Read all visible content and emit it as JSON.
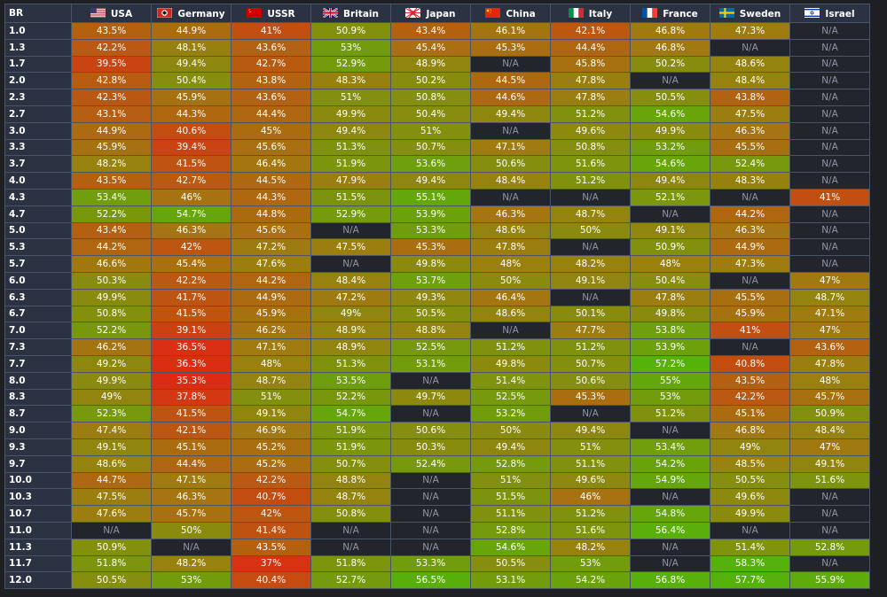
{
  "chart_data": {
    "type": "heatmap",
    "corner_label": "BR",
    "columns": [
      "USA",
      "Germany",
      "USSR",
      "Britain",
      "Japan",
      "China",
      "Italy",
      "France",
      "Sweden",
      "Israel"
    ],
    "flag_icons": [
      "us-flag-icon",
      "germany-flag-icon",
      "ussr-flag-icon",
      "uk-flag-icon",
      "japan-flag-icon",
      "china-flag-icon",
      "italy-flag-icon",
      "france-flag-icon",
      "sweden-flag-icon",
      "israel-flag-icon"
    ],
    "na_text": "N/A",
    "colors": {
      "low": "#dd2b12",
      "mid": "#a07a10",
      "high": "#55b20a",
      "na_background": "#22252c",
      "header_background": "#2b3242"
    },
    "rows": [
      {
        "br": "1.0",
        "values": [
          "43.5%",
          "44.9%",
          "41%",
          "50.9%",
          "43.4%",
          "46.1%",
          "42.1%",
          "46.8%",
          "47.3%",
          "N/A"
        ]
      },
      {
        "br": "1.3",
        "values": [
          "42.2%",
          "48.1%",
          "43.6%",
          "53%",
          "45.4%",
          "45.3%",
          "44.4%",
          "46.8%",
          "N/A",
          "N/A"
        ]
      },
      {
        "br": "1.7",
        "values": [
          "39.5%",
          "49.4%",
          "42.7%",
          "52.9%",
          "48.9%",
          "N/A",
          "45.8%",
          "50.2%",
          "48.6%",
          "N/A"
        ]
      },
      {
        "br": "2.0",
        "values": [
          "42.8%",
          "50.4%",
          "43.8%",
          "48.3%",
          "50.2%",
          "44.5%",
          "47.8%",
          "N/A",
          "48.4%",
          "N/A"
        ]
      },
      {
        "br": "2.3",
        "values": [
          "42.3%",
          "45.9%",
          "43.6%",
          "51%",
          "50.8%",
          "44.6%",
          "47.8%",
          "50.5%",
          "43.8%",
          "N/A"
        ]
      },
      {
        "br": "2.7",
        "values": [
          "43.1%",
          "44.3%",
          "44.4%",
          "49.9%",
          "50.4%",
          "49.4%",
          "51.2%",
          "54.6%",
          "47.5%",
          "N/A"
        ]
      },
      {
        "br": "3.0",
        "values": [
          "44.9%",
          "40.6%",
          "45%",
          "49.4%",
          "51%",
          "N/A",
          "49.6%",
          "49.9%",
          "46.3%",
          "N/A"
        ]
      },
      {
        "br": "3.3",
        "values": [
          "45.9%",
          "39.4%",
          "45.6%",
          "51.3%",
          "50.7%",
          "47.1%",
          "50.8%",
          "53.2%",
          "45.5%",
          "N/A"
        ]
      },
      {
        "br": "3.7",
        "values": [
          "48.2%",
          "41.5%",
          "46.4%",
          "51.9%",
          "53.6%",
          "50.6%",
          "51.6%",
          "54.6%",
          "52.4%",
          "N/A"
        ]
      },
      {
        "br": "4.0",
        "values": [
          "43.5%",
          "42.7%",
          "44.5%",
          "47.9%",
          "49.4%",
          "48.4%",
          "51.2%",
          "49.4%",
          "48.3%",
          "N/A"
        ]
      },
      {
        "br": "4.3",
        "values": [
          "53.4%",
          "46%",
          "44.3%",
          "51.5%",
          "55.1%",
          "N/A",
          "N/A",
          "52.1%",
          "N/A",
          "41%"
        ]
      },
      {
        "br": "4.7",
        "values": [
          "52.2%",
          "54.7%",
          "44.8%",
          "52.9%",
          "53.9%",
          "46.3%",
          "48.7%",
          "N/A",
          "44.2%",
          "N/A"
        ]
      },
      {
        "br": "5.0",
        "values": [
          "43.4%",
          "46.3%",
          "45.6%",
          "N/A",
          "53.3%",
          "48.6%",
          "50%",
          "49.1%",
          "46.3%",
          "N/A"
        ]
      },
      {
        "br": "5.3",
        "values": [
          "44.2%",
          "42%",
          "47.2%",
          "47.5%",
          "45.3%",
          "47.8%",
          "N/A",
          "50.9%",
          "44.9%",
          "N/A"
        ]
      },
      {
        "br": "5.7",
        "values": [
          "46.6%",
          "45.4%",
          "47.6%",
          "N/A",
          "49.8%",
          "48%",
          "48.2%",
          "48%",
          "47.3%",
          "N/A"
        ]
      },
      {
        "br": "6.0",
        "values": [
          "50.3%",
          "42.2%",
          "44.2%",
          "48.4%",
          "53.7%",
          "50%",
          "49.1%",
          "50.4%",
          "N/A",
          "47%"
        ]
      },
      {
        "br": "6.3",
        "values": [
          "49.9%",
          "41.7%",
          "44.9%",
          "47.2%",
          "49.3%",
          "46.4%",
          "N/A",
          "47.8%",
          "45.5%",
          "48.7%"
        ]
      },
      {
        "br": "6.7",
        "values": [
          "50.8%",
          "41.5%",
          "45.9%",
          "49%",
          "50.5%",
          "48.6%",
          "50.1%",
          "49.8%",
          "45.9%",
          "47.1%"
        ]
      },
      {
        "br": "7.0",
        "values": [
          "52.2%",
          "39.1%",
          "46.2%",
          "48.9%",
          "48.8%",
          "N/A",
          "47.7%",
          "53.8%",
          "41%",
          "47%"
        ]
      },
      {
        "br": "7.3",
        "values": [
          "46.2%",
          "36.5%",
          "47.1%",
          "48.9%",
          "52.5%",
          "51.2%",
          "51.2%",
          "53.9%",
          "N/A",
          "43.6%"
        ]
      },
      {
        "br": "7.7",
        "values": [
          "49.2%",
          "36.3%",
          "48%",
          "51.3%",
          "53.1%",
          "49.8%",
          "50.7%",
          "57.2%",
          "40.8%",
          "47.8%"
        ]
      },
      {
        "br": "8.0",
        "values": [
          "49.9%",
          "35.3%",
          "48.7%",
          "53.5%",
          "N/A",
          "51.4%",
          "50.6%",
          "55%",
          "43.5%",
          "48%"
        ]
      },
      {
        "br": "8.3",
        "values": [
          "49%",
          "37.8%",
          "51%",
          "52.2%",
          "49.7%",
          "52.5%",
          "45.3%",
          "53%",
          "42.2%",
          "45.7%"
        ]
      },
      {
        "br": "8.7",
        "values": [
          "52.3%",
          "41.5%",
          "49.1%",
          "54.7%",
          "N/A",
          "53.2%",
          "N/A",
          "51.2%",
          "45.1%",
          "50.9%"
        ]
      },
      {
        "br": "9.0",
        "values": [
          "47.4%",
          "42.1%",
          "46.9%",
          "51.9%",
          "50.6%",
          "50%",
          "49.4%",
          "N/A",
          "46.8%",
          "48.4%"
        ]
      },
      {
        "br": "9.3",
        "values": [
          "49.1%",
          "45.1%",
          "45.2%",
          "51.9%",
          "50.3%",
          "49.4%",
          "51%",
          "53.4%",
          "49%",
          "47%"
        ]
      },
      {
        "br": "9.7",
        "values": [
          "48.6%",
          "44.4%",
          "45.2%",
          "50.7%",
          "52.4%",
          "52.8%",
          "51.1%",
          "54.2%",
          "48.5%",
          "49.1%"
        ]
      },
      {
        "br": "10.0",
        "values": [
          "44.7%",
          "47.1%",
          "42.2%",
          "48.8%",
          "N/A",
          "51%",
          "49.6%",
          "54.9%",
          "50.5%",
          "51.6%"
        ]
      },
      {
        "br": "10.3",
        "values": [
          "47.5%",
          "46.3%",
          "40.7%",
          "48.7%",
          "N/A",
          "51.5%",
          "46%",
          "N/A",
          "49.6%",
          "N/A"
        ]
      },
      {
        "br": "10.7",
        "values": [
          "47.6%",
          "45.7%",
          "42%",
          "50.8%",
          "N/A",
          "51.1%",
          "51.2%",
          "54.8%",
          "49.9%",
          "N/A"
        ]
      },
      {
        "br": "11.0",
        "values": [
          "N/A",
          "50%",
          "41.4%",
          "N/A",
          "N/A",
          "52.8%",
          "51.6%",
          "56.4%",
          "N/A",
          "N/A"
        ]
      },
      {
        "br": "11.3",
        "values": [
          "50.9%",
          "N/A",
          "43.5%",
          "N/A",
          "N/A",
          "54.6%",
          "48.2%",
          "N/A",
          "51.4%",
          "52.8%"
        ]
      },
      {
        "br": "11.7",
        "values": [
          "51.8%",
          "48.2%",
          "37%",
          "51.8%",
          "53.3%",
          "50.5%",
          "53%",
          "N/A",
          "58.3%",
          "N/A"
        ]
      },
      {
        "br": "12.0",
        "values": [
          "50.5%",
          "53%",
          "40.4%",
          "52.7%",
          "56.5%",
          "53.1%",
          "54.2%",
          "56.8%",
          "57.7%",
          "55.9%"
        ]
      }
    ]
  }
}
